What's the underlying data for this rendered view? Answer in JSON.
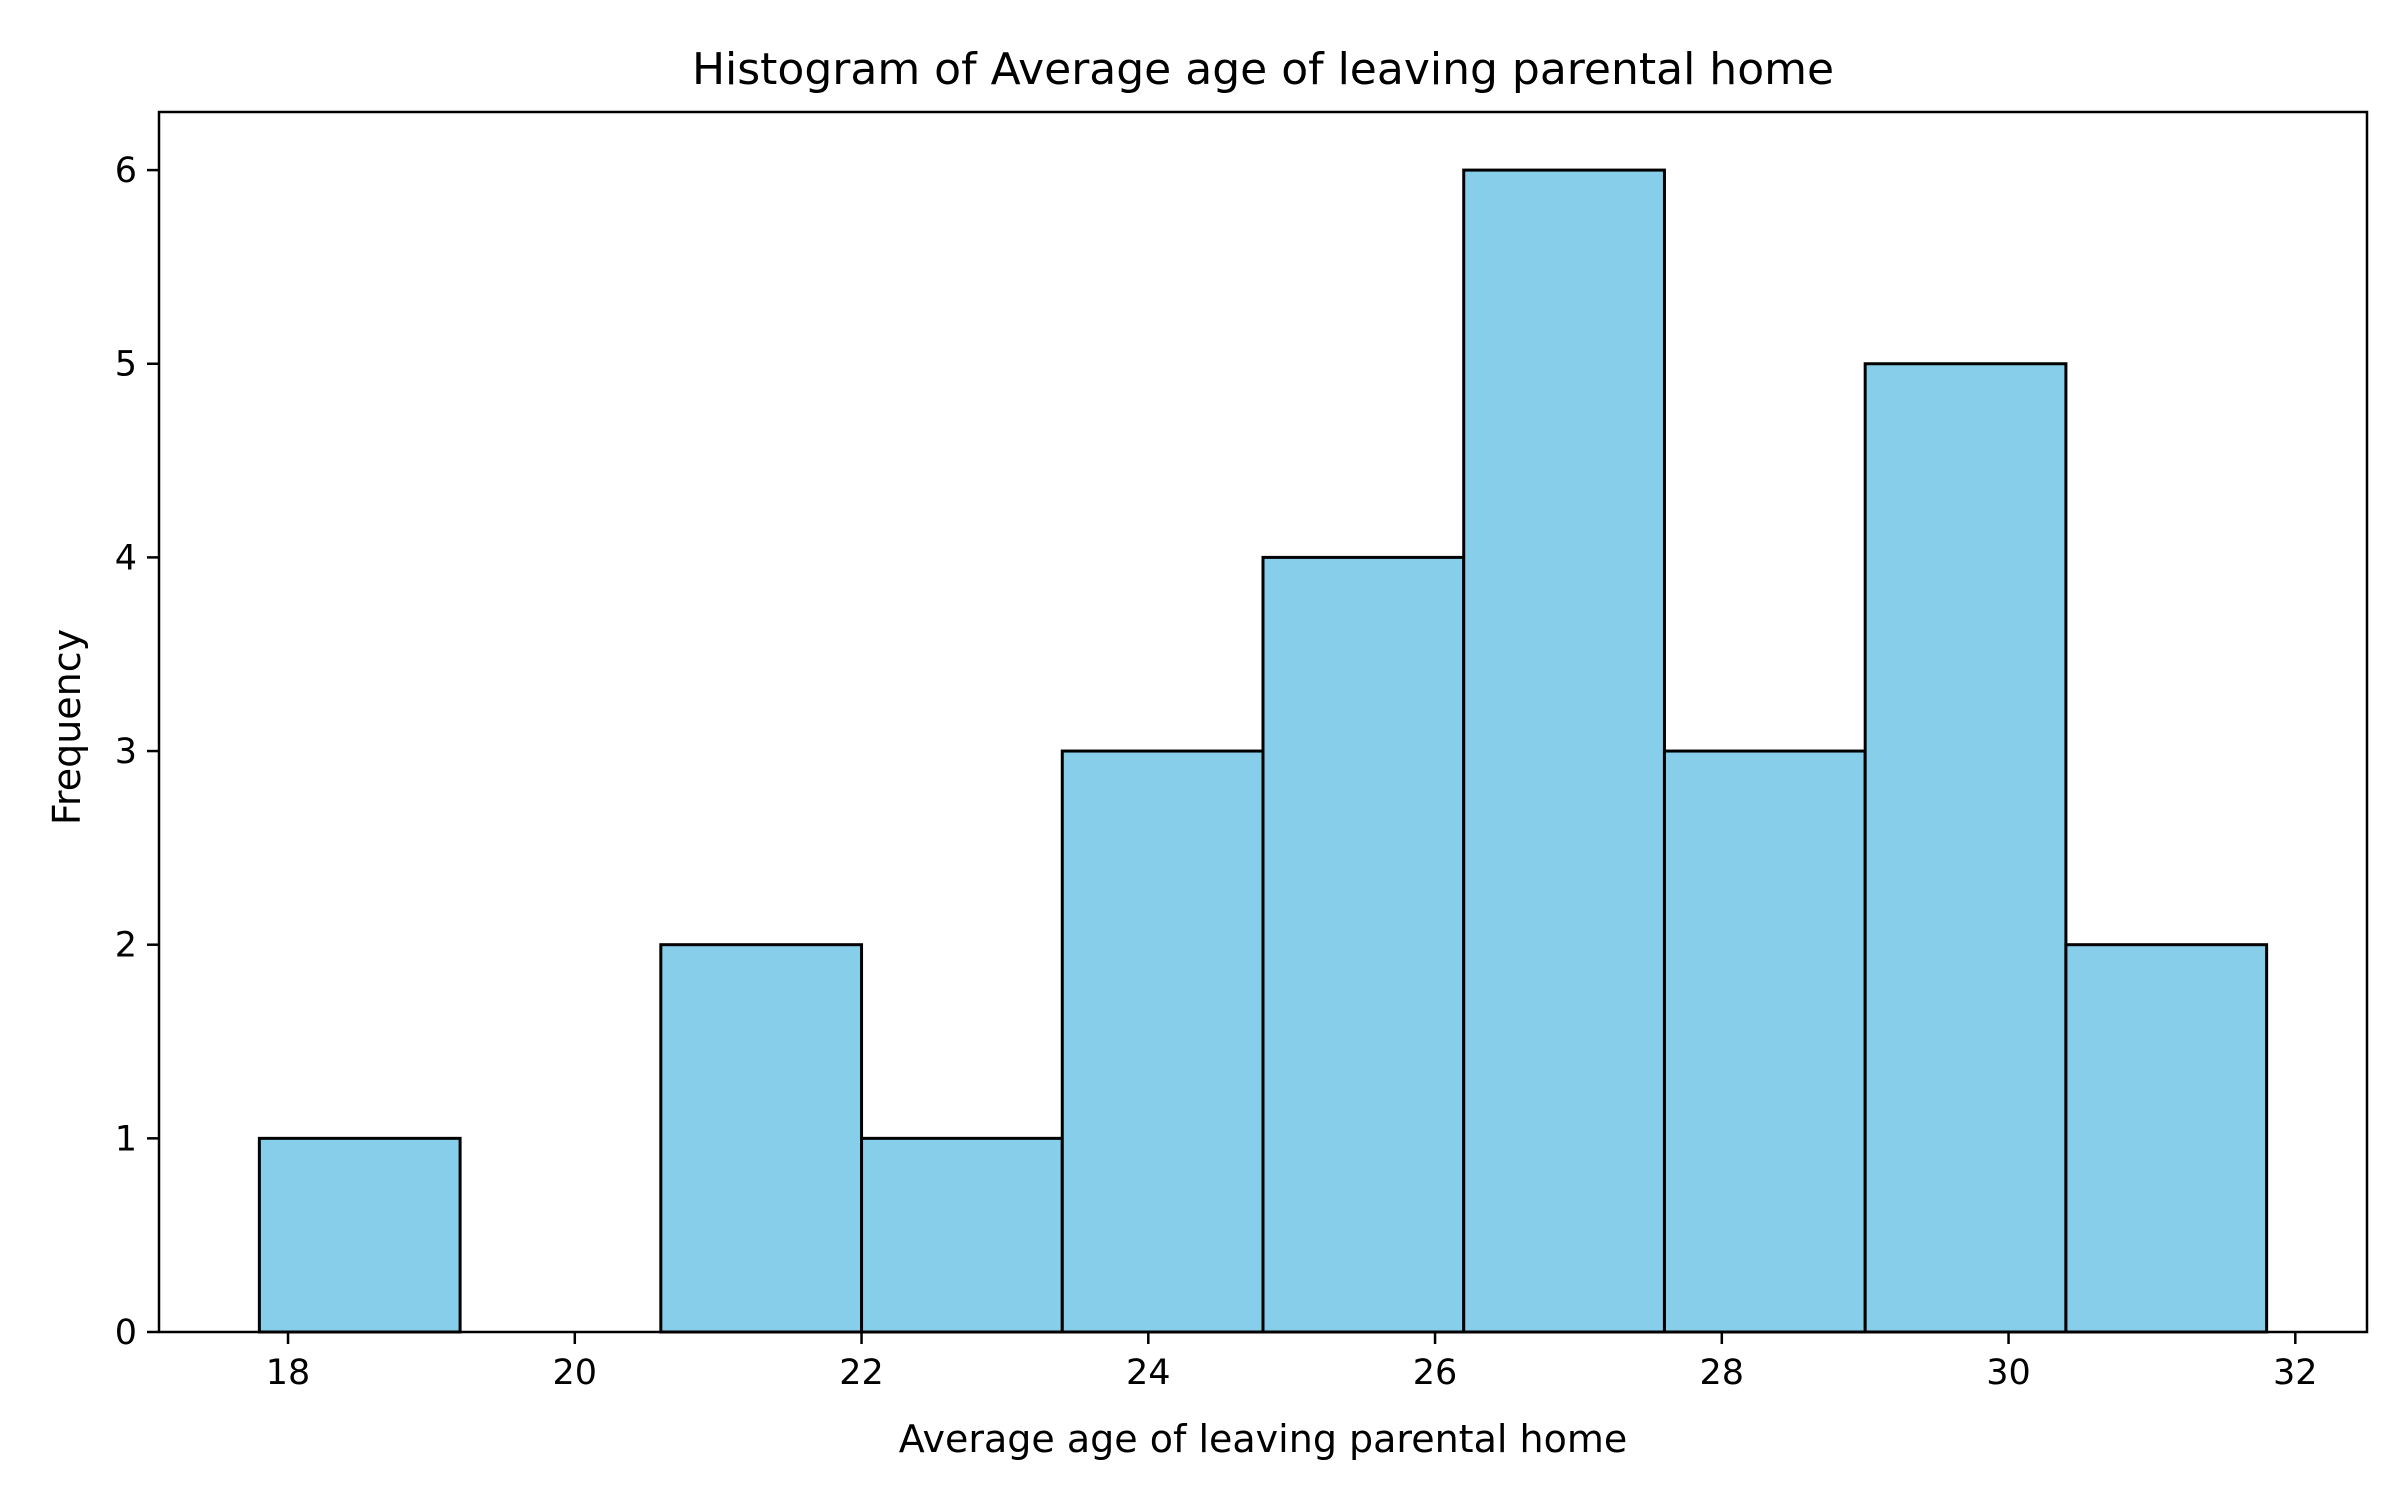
{
  "chart_data": {
    "type": "bar",
    "title": "Histogram of Average age of leaving parental home",
    "xlabel": "Average age of leaving parental home",
    "ylabel": "Frequency",
    "bin_edges": [
      17.8,
      19.2,
      20.6,
      22.0,
      23.4,
      24.8,
      26.2,
      27.6,
      29.0,
      30.4,
      31.8
    ],
    "values": [
      1,
      0,
      2,
      1,
      3,
      4,
      6,
      3,
      5,
      2
    ],
    "xlim": [
      17.1,
      32.5
    ],
    "ylim": [
      0,
      6.3
    ],
    "xticks": [
      18,
      20,
      22,
      24,
      26,
      28,
      30,
      32
    ],
    "yticks": [
      0,
      1,
      2,
      3,
      4,
      5,
      6
    ],
    "bar_color": "#87CEEB",
    "edge_color": "#000000",
    "grid": false,
    "legend": "none"
  }
}
